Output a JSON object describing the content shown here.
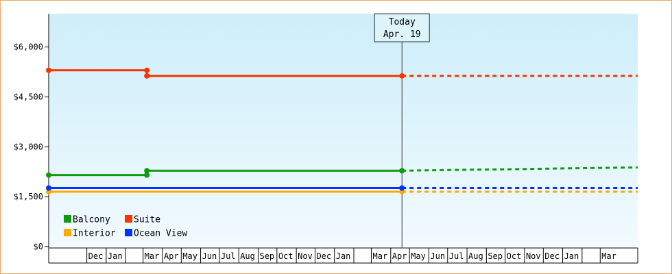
{
  "chart_data": {
    "type": "line",
    "title": "",
    "xlabel": "",
    "ylabel": "",
    "ylim": [
      0,
      7000
    ],
    "y_ticks": [
      0,
      1500,
      3000,
      4500,
      6000
    ],
    "y_tick_labels": [
      "$0",
      "$1,500",
      "$3,000",
      "$4,500",
      "$6,000"
    ],
    "x_range": [
      "2017-10-01",
      "2020-04-30"
    ],
    "x_ticks": [
      {
        "label": "",
        "start": "2017-10-01",
        "end": "2017-11-30"
      },
      {
        "label": "Dec",
        "start": "2017-12-01",
        "end": "2017-12-31"
      },
      {
        "label": "Jan",
        "start": "2018-01-01",
        "end": "2018-01-31"
      },
      {
        "label": "",
        "start": "2018-02-01",
        "end": "2018-02-28"
      },
      {
        "label": "Mar",
        "start": "2018-03-01",
        "end": "2018-03-31"
      },
      {
        "label": "Apr",
        "start": "2018-04-01",
        "end": "2018-04-30"
      },
      {
        "label": "May",
        "start": "2018-05-01",
        "end": "2018-05-31"
      },
      {
        "label": "Jun",
        "start": "2018-06-01",
        "end": "2018-06-30"
      },
      {
        "label": "Jul",
        "start": "2018-07-01",
        "end": "2018-07-31"
      },
      {
        "label": "Aug",
        "start": "2018-08-01",
        "end": "2018-08-31"
      },
      {
        "label": "Sep",
        "start": "2018-09-01",
        "end": "2018-09-30"
      },
      {
        "label": "Oct",
        "start": "2018-10-01",
        "end": "2018-10-31"
      },
      {
        "label": "Nov",
        "start": "2018-11-01",
        "end": "2018-11-30"
      },
      {
        "label": "Dec",
        "start": "2018-12-01",
        "end": "2018-12-31"
      },
      {
        "label": "Jan",
        "start": "2019-01-01",
        "end": "2019-01-31"
      },
      {
        "label": "",
        "start": "2019-02-01",
        "end": "2019-02-28"
      },
      {
        "label": "Mar",
        "start": "2019-03-01",
        "end": "2019-03-31"
      },
      {
        "label": "Apr",
        "start": "2019-04-01",
        "end": "2019-04-30"
      },
      {
        "label": "May",
        "start": "2019-05-01",
        "end": "2019-05-31"
      },
      {
        "label": "Jun",
        "start": "2019-06-01",
        "end": "2019-06-30"
      },
      {
        "label": "Jul",
        "start": "2019-07-01",
        "end": "2019-07-31"
      },
      {
        "label": "Aug",
        "start": "2019-08-01",
        "end": "2019-08-31"
      },
      {
        "label": "Sep",
        "start": "2019-09-01",
        "end": "2019-09-30"
      },
      {
        "label": "Oct",
        "start": "2019-10-01",
        "end": "2019-10-31"
      },
      {
        "label": "Nov",
        "start": "2019-11-01",
        "end": "2019-11-30"
      },
      {
        "label": "Dec",
        "start": "2019-12-01",
        "end": "2019-12-31"
      },
      {
        "label": "Jan",
        "start": "2020-01-01",
        "end": "2020-01-31"
      },
      {
        "label": "",
        "start": "2020-02-01",
        "end": "2020-02-29"
      },
      {
        "label": "Mar",
        "start": "2020-03-01",
        "end": "2020-04-30"
      }
    ],
    "today_marker": {
      "line1": "Today",
      "line2": "Apr. 19",
      "date": "2019-04-19"
    },
    "series": [
      {
        "name": "Balcony",
        "color": "#119911",
        "points": [
          {
            "x": "2017-10-01",
            "y": 2150
          },
          {
            "x": "2018-03-07",
            "y": 2150
          },
          {
            "x": "2018-03-07",
            "y": 2280
          },
          {
            "x": "2019-04-19",
            "y": 2280
          }
        ],
        "markers": [
          {
            "x": "2017-10-01",
            "y": 2150
          },
          {
            "x": "2018-03-07",
            "y": 2150
          },
          {
            "x": "2018-03-07",
            "y": 2280
          },
          {
            "x": "2019-04-19",
            "y": 2280
          }
        ],
        "forecast": [
          {
            "x": "2019-04-19",
            "y": 2280
          },
          {
            "x": "2019-05-20",
            "y": 2290
          },
          {
            "x": "2019-08-01",
            "y": 2310
          },
          {
            "x": "2019-11-01",
            "y": 2330
          },
          {
            "x": "2020-01-01",
            "y": 2350
          },
          {
            "x": "2020-04-30",
            "y": 2380
          }
        ]
      },
      {
        "name": "Suite",
        "color": "#ff3300",
        "points": [
          {
            "x": "2017-10-01",
            "y": 5300
          },
          {
            "x": "2018-03-07",
            "y": 5300
          },
          {
            "x": "2018-03-07",
            "y": 5130
          },
          {
            "x": "2019-04-19",
            "y": 5130
          }
        ],
        "markers": [
          {
            "x": "2017-10-01",
            "y": 5300
          },
          {
            "x": "2018-03-07",
            "y": 5300
          },
          {
            "x": "2018-03-07",
            "y": 5130
          },
          {
            "x": "2019-04-19",
            "y": 5130
          }
        ],
        "forecast": [
          {
            "x": "2019-04-19",
            "y": 5130
          },
          {
            "x": "2020-04-30",
            "y": 5130
          }
        ]
      },
      {
        "name": "Interior",
        "color": "#ffaa00",
        "points": [
          {
            "x": "2017-10-01",
            "y": 1650
          },
          {
            "x": "2019-04-19",
            "y": 1650
          }
        ],
        "markers": [
          {
            "x": "2017-10-01",
            "y": 1650
          },
          {
            "x": "2019-04-19",
            "y": 1650
          }
        ],
        "forecast": [
          {
            "x": "2019-04-19",
            "y": 1650
          },
          {
            "x": "2020-04-30",
            "y": 1650
          }
        ]
      },
      {
        "name": "Ocean View",
        "color": "#0033ff",
        "points": [
          {
            "x": "2017-10-01",
            "y": 1760
          },
          {
            "x": "2019-04-19",
            "y": 1760
          }
        ],
        "markers": [
          {
            "x": "2017-10-01",
            "y": 1760
          },
          {
            "x": "2019-04-19",
            "y": 1760
          }
        ],
        "forecast": [
          {
            "x": "2019-04-19",
            "y": 1760
          },
          {
            "x": "2020-04-30",
            "y": 1760
          }
        ]
      }
    ],
    "legend": {
      "placement": "bottom-left",
      "items": [
        {
          "label": "Balcony",
          "color": "#119911"
        },
        {
          "label": "Suite",
          "color": "#ff3300"
        },
        {
          "label": "Interior",
          "color": "#ffaa00"
        },
        {
          "label": "Ocean View",
          "color": "#0033ff"
        }
      ]
    },
    "background_gradient": [
      "#cdeefa",
      "#f2fafe"
    ]
  }
}
